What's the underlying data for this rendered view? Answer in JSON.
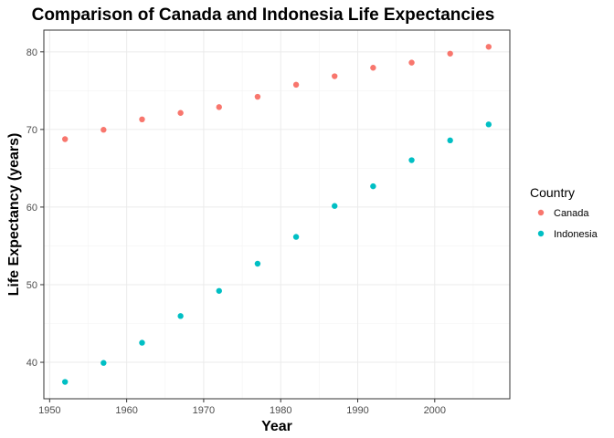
{
  "chart_data": {
    "type": "scatter",
    "title": "Comparison of Canada and Indonesia Life Expectancies",
    "xlabel": "Year",
    "ylabel": "Life Expectancy (years)",
    "xlim": [
      1949.25,
      2009.75
    ],
    "ylim": [
      35.3,
      82.8
    ],
    "x_ticks": [
      1950,
      1960,
      1970,
      1980,
      1990,
      2000
    ],
    "y_ticks": [
      40,
      50,
      60,
      70,
      80
    ],
    "grid": true,
    "legend": {
      "title": "Country",
      "placement": "right"
    },
    "series": [
      {
        "name": "Canada",
        "color": "#F8766D",
        "x": [
          1952,
          1957,
          1962,
          1967,
          1972,
          1977,
          1982,
          1987,
          1992,
          1997,
          2002,
          2007
        ],
        "y": [
          68.75,
          69.96,
          71.3,
          72.13,
          72.88,
          74.21,
          75.76,
          76.86,
          77.95,
          78.61,
          79.77,
          80.65
        ]
      },
      {
        "name": "Indonesia",
        "color": "#00BFC4",
        "x": [
          1952,
          1957,
          1962,
          1967,
          1972,
          1977,
          1982,
          1987,
          1992,
          1997,
          2002,
          2007
        ],
        "y": [
          37.47,
          39.92,
          42.52,
          45.96,
          49.2,
          52.7,
          56.16,
          60.14,
          62.68,
          66.04,
          68.59,
          70.65
        ]
      }
    ]
  }
}
